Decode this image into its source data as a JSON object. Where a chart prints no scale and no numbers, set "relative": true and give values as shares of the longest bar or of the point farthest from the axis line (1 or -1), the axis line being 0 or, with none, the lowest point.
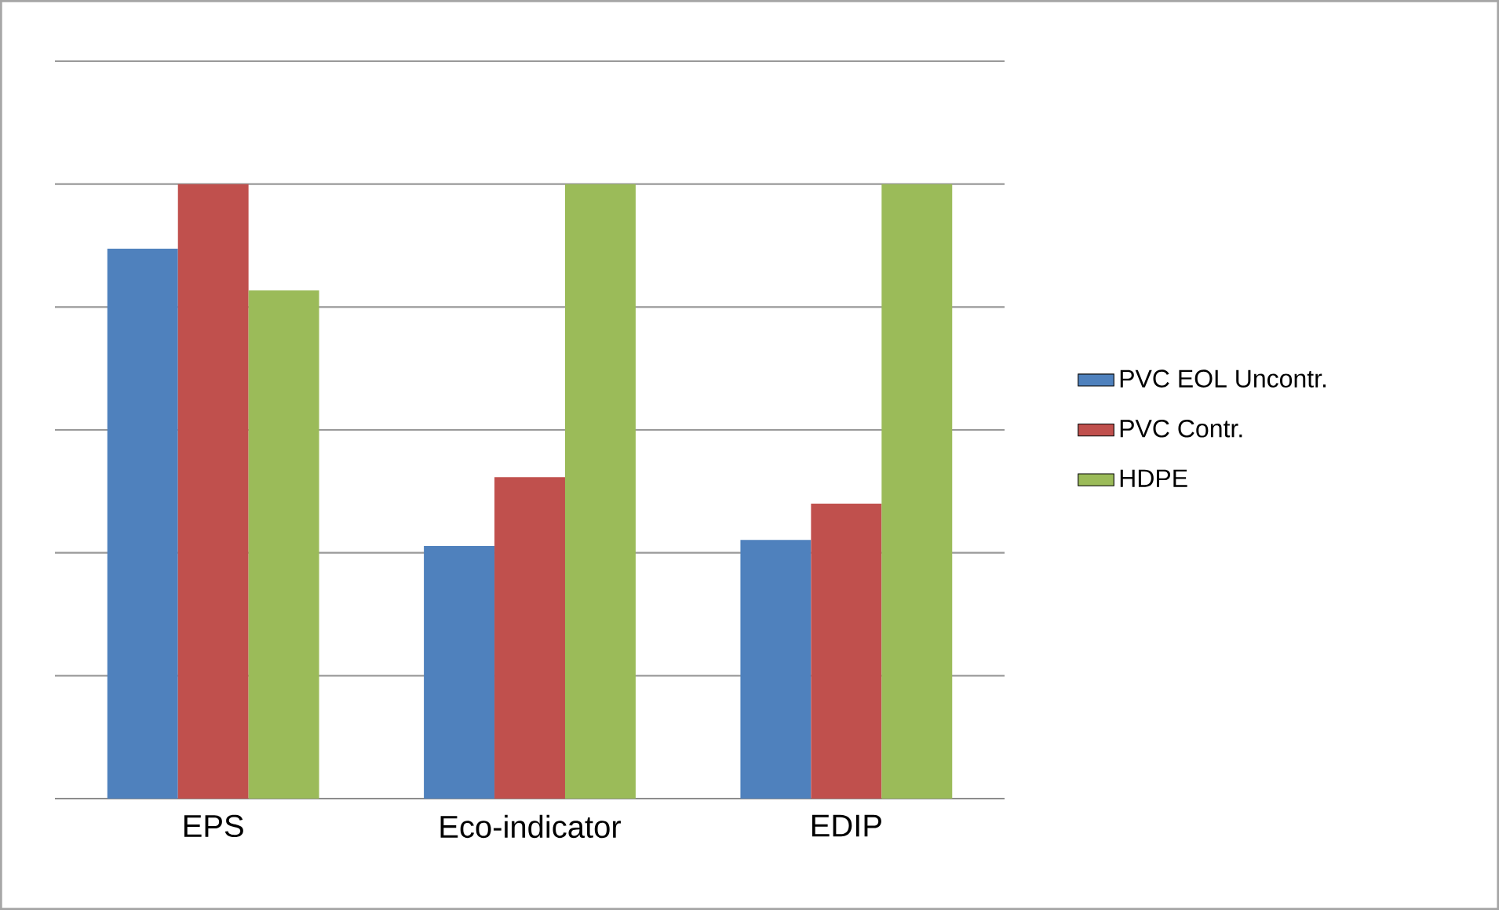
{
  "chart_data": {
    "type": "bar",
    "relative": true,
    "categories": [
      "EPS",
      "Eco-indicator",
      "EDIP"
    ],
    "series": [
      {
        "name": "PVC EOL Uncontr.",
        "color": "#4f81bd",
        "values": [
          0.895,
          0.411,
          0.421
        ]
      },
      {
        "name": "PVC Contr.",
        "color": "#c0504d",
        "values": [
          1,
          0.523,
          0.48
        ]
      },
      {
        "name": "HDPE",
        "color": "#9bbb59",
        "values": [
          0.827,
          1,
          1
        ]
      }
    ],
    "grid": "y",
    "legend": "right"
  }
}
